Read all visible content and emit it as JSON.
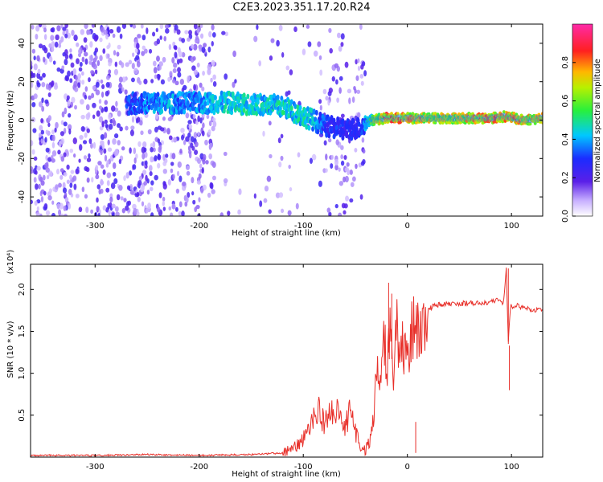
{
  "title": "C2E3.2023.351.17.20.R24",
  "colors": {
    "snr_line": "#e8302a",
    "axis": "#000000"
  },
  "chart_data": [
    {
      "type": "heatmap",
      "xlabel": "Height of straight line (km)",
      "ylabel": "Frequency (Hz)",
      "xlim": [
        -362,
        130
      ],
      "ylim": [
        -50,
        50
      ],
      "x_ticks": [
        -300,
        -200,
        -100,
        0,
        100
      ],
      "y_ticks": [
        -40,
        -20,
        0,
        20,
        40
      ],
      "x_tick_labels": [
        "-300",
        "-200",
        "-100",
        "0",
        "100"
      ],
      "y_tick_labels": [
        "-40",
        "-20",
        "0",
        "20",
        "40"
      ],
      "colorbar": {
        "label": "Normalized spectral amplitude",
        "range": [
          0.0,
          1.0
        ],
        "ticks": [
          0.0,
          0.2,
          0.4,
          0.6,
          0.8
        ],
        "tick_labels": [
          "0.0",
          "0.2",
          "0.4",
          "0.6",
          "0.8"
        ],
        "colormap": "rainbow (violet-blue-cyan-green-yellow-red-magenta)"
      },
      "ridge": [
        {
          "x": -300,
          "y": 8,
          "amp": 0.25
        },
        {
          "x": -250,
          "y": 9,
          "amp": 0.4
        },
        {
          "x": -230,
          "y": 9,
          "amp": 0.45
        },
        {
          "x": -215,
          "y": 9,
          "amp": 0.4
        },
        {
          "x": -190,
          "y": 9,
          "amp": 0.45
        },
        {
          "x": -170,
          "y": 9,
          "amp": 0.5
        },
        {
          "x": -150,
          "y": 8,
          "amp": 0.5
        },
        {
          "x": -130,
          "y": 8,
          "amp": 0.5
        },
        {
          "x": -115,
          "y": 6,
          "amp": 0.5
        },
        {
          "x": -100,
          "y": 2,
          "amp": 0.5
        },
        {
          "x": -90,
          "y": 0,
          "amp": 0.45
        },
        {
          "x": -80,
          "y": -3,
          "amp": 0.35
        },
        {
          "x": -60,
          "y": -5,
          "amp": 0.3
        },
        {
          "x": -45,
          "y": -4,
          "amp": 0.3
        },
        {
          "x": -35,
          "y": 0,
          "amp": 0.6
        },
        {
          "x": -20,
          "y": 1,
          "amp": 0.85
        },
        {
          "x": 0,
          "y": 1,
          "amp": 0.8
        },
        {
          "x": 20,
          "y": 1,
          "amp": 0.75
        },
        {
          "x": 50,
          "y": 1,
          "amp": 0.75
        },
        {
          "x": 80,
          "y": 1,
          "amp": 0.85
        },
        {
          "x": 95,
          "y": 2,
          "amp": 0.8
        },
        {
          "x": 110,
          "y": 0,
          "amp": 0.8
        },
        {
          "x": 130,
          "y": 1,
          "amp": 0.75
        }
      ]
    },
    {
      "type": "line",
      "xlabel": "Height of straight line (km)",
      "ylabel": "SNR (10 * v/v)",
      "y_scale_note": "(x10⁴)",
      "xlim": [
        -362,
        130
      ],
      "ylim": [
        0,
        2.3
      ],
      "x_ticks": [
        -300,
        -200,
        -100,
        0,
        100
      ],
      "y_ticks": [
        0.5,
        1.0,
        1.5,
        2.0
      ],
      "x_tick_labels": [
        "-300",
        "-200",
        "-100",
        "0",
        "100"
      ],
      "y_tick_labels": [
        "0.5",
        "1.0",
        "1.5",
        "2.0"
      ],
      "series": [
        {
          "color": "#e8302a",
          "x": [
            -362,
            -300,
            -250,
            -200,
            -150,
            -120,
            -110,
            -100,
            -95,
            -90,
            -85,
            -80,
            -75,
            -70,
            -60,
            -55,
            -50,
            -45,
            -40,
            -35,
            -32,
            -30,
            -28,
            -26,
            -24,
            -22,
            -20,
            -18,
            -16,
            -14,
            -12,
            -10,
            -8,
            -6,
            -4,
            -2,
            0,
            3,
            6,
            10,
            15,
            20,
            25,
            30,
            40,
            50,
            60,
            70,
            80,
            88,
            92,
            95,
            97,
            99,
            101,
            105,
            110,
            120,
            130
          ],
          "y": [
            0.02,
            0.02,
            0.03,
            0.02,
            0.03,
            0.05,
            0.1,
            0.22,
            0.3,
            0.45,
            0.55,
            0.4,
            0.5,
            0.6,
            0.35,
            0.55,
            0.3,
            0.1,
            0.08,
            0.25,
            0.5,
            0.9,
            1.2,
            0.8,
            1.3,
            1.5,
            0.9,
            1.3,
            1.55,
            1.0,
            1.3,
            1.55,
            1.1,
            1.45,
            1.2,
            1.5,
            1.1,
            1.4,
            1.55,
            1.6,
            1.7,
            1.76,
            1.8,
            1.82,
            1.83,
            1.83,
            1.84,
            1.84,
            1.85,
            1.88,
            1.82,
            2.25,
            1.35,
            1.8,
            1.8,
            1.82,
            1.78,
            1.76,
            1.75
          ]
        }
      ],
      "annotations": [
        {
          "x": -18,
          "y": 2.08
        },
        {
          "x": -15,
          "y": 1.95
        },
        {
          "x": 97,
          "y": 2.25
        },
        {
          "x": 98,
          "y": 1.33
        },
        {
          "x": 8,
          "y": 0.42
        }
      ]
    }
  ]
}
